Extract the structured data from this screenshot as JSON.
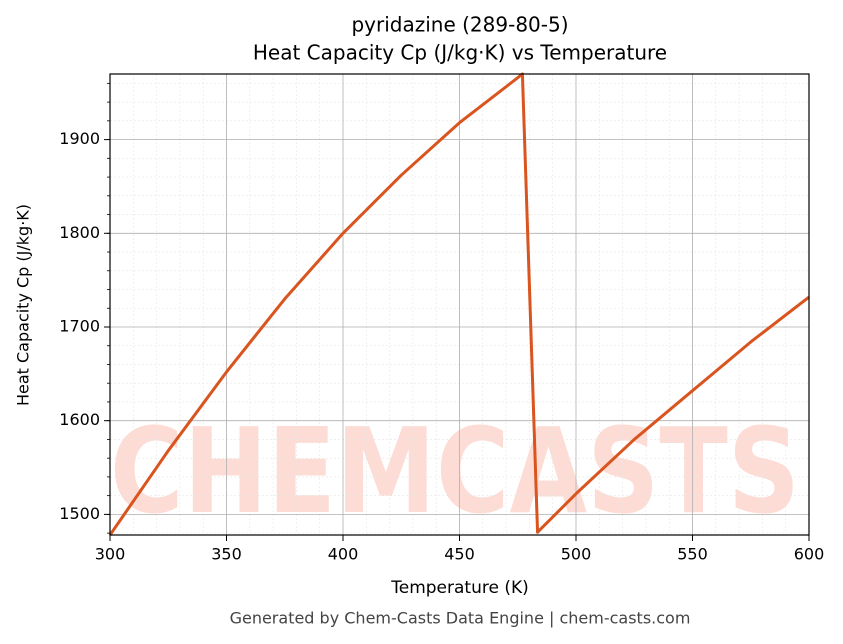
{
  "chart_data": {
    "type": "line",
    "title": "pyridazine (289-80-5)",
    "subtitle": "Heat Capacity Cp (J/kg·K) vs Temperature",
    "x_label": "Temperature (K)",
    "y_label": "Heat Capacity Cp (J/kg·K)",
    "footer": "Generated by Chem-Casts Data Engine | chem-casts.com",
    "watermark": "CHEMCASTS",
    "x": [
      300,
      325,
      350,
      375,
      400,
      425,
      450,
      475,
      477,
      483.5,
      500,
      525,
      550,
      575,
      600
    ],
    "series": [
      {
        "name": "Cp",
        "color": "#d9541e",
        "values": [
          1478,
          1568,
          1652,
          1730,
          1800,
          1862,
          1918,
          1966,
          1970,
          1481,
          1522,
          1580,
          1632,
          1684,
          1732
        ]
      }
    ],
    "xlim": [
      300,
      600
    ],
    "xticks": [
      300,
      350,
      400,
      450,
      500,
      550,
      600
    ],
    "ylim": [
      1478,
      1970
    ],
    "yticks": [
      1500,
      1600,
      1700,
      1800,
      1900
    ],
    "grid": true,
    "minor_grid": true
  }
}
